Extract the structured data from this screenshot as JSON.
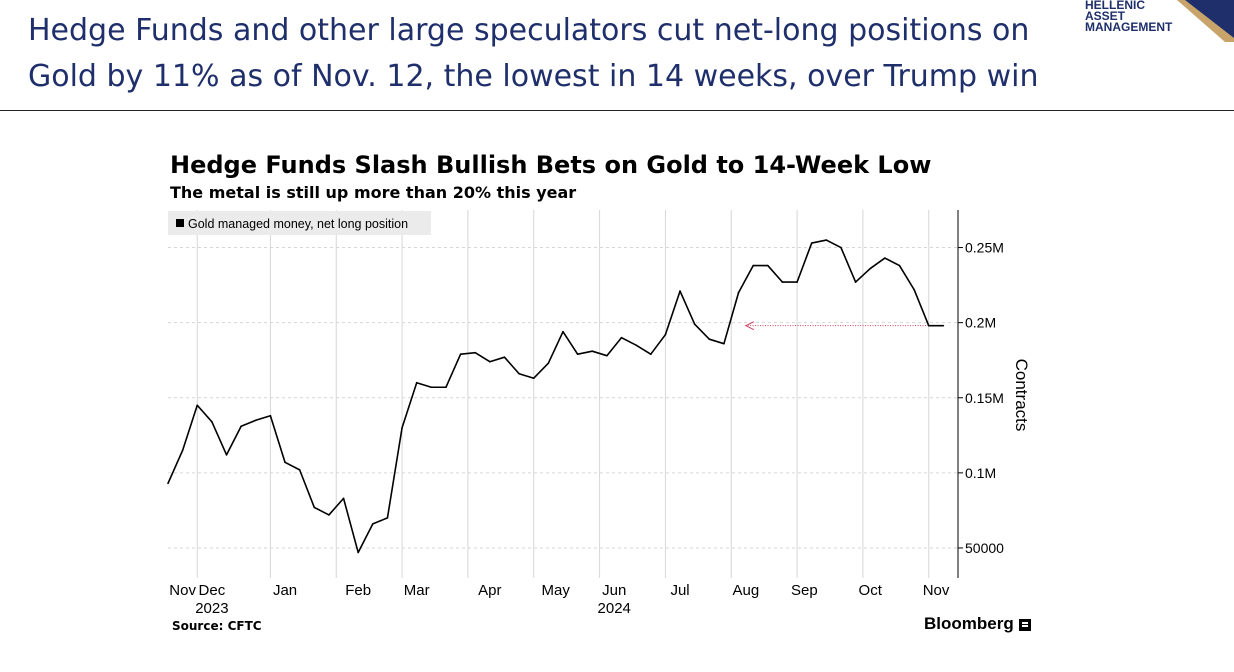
{
  "slide": {
    "headline_line1": "Hedge Funds and other large speculators cut net-long positions on",
    "headline_line2": "Gold by 11% as of Nov. 12, the lowest in 14 weeks, over Trump win",
    "logo_line1": "HELLENIC",
    "logo_line2": "ASSET",
    "logo_line3": "MANAGEMENT",
    "accent_color": "#1f2f6b"
  },
  "chart_data": {
    "type": "line",
    "title": "Hedge Funds Slash Bullish Bets on Gold to 14-Week Low",
    "subtitle": "The metal is still up more than 20% this year",
    "legend": "Gold managed money, net long position",
    "ylabel": "Contracts",
    "ylim": [
      30000,
      275000
    ],
    "yticks": [
      {
        "value": 50000,
        "label": "50000"
      },
      {
        "value": 100000,
        "label": "0.1M"
      },
      {
        "value": 150000,
        "label": "0.15M"
      },
      {
        "value": 200000,
        "label": "0.2M"
      },
      {
        "value": 250000,
        "label": "0.25M"
      }
    ],
    "xlim": [
      0,
      54
    ],
    "xticks": [
      {
        "week": 1,
        "label": "Nov"
      },
      {
        "week": 3,
        "label": "Dec"
      },
      {
        "week": 8,
        "label": "Jan"
      },
      {
        "week": 13,
        "label": "Feb"
      },
      {
        "week": 17,
        "label": "Mar"
      },
      {
        "week": 22,
        "label": "Apr"
      },
      {
        "week": 26.5,
        "label": "May"
      },
      {
        "week": 30.5,
        "label": "Jun"
      },
      {
        "week": 35,
        "label": "Jul"
      },
      {
        "week": 39.5,
        "label": "Aug"
      },
      {
        "week": 43.5,
        "label": "Sep"
      },
      {
        "week": 48,
        "label": "Oct"
      },
      {
        "week": 52.5,
        "label": "Nov"
      }
    ],
    "year_labels": [
      {
        "week": 3,
        "label": "2023"
      },
      {
        "week": 30.5,
        "label": "2024"
      }
    ],
    "vgrid_weeks": [
      2,
      7,
      11.5,
      16,
      20.5,
      25,
      29.5,
      34,
      38.5,
      43,
      47.5,
      52
    ],
    "series": [
      {
        "name": "Gold managed money, net long position",
        "color": "#000000",
        "x": [
          0,
          1,
          2,
          3,
          4,
          5,
          6,
          7,
          8,
          9,
          10,
          11,
          12,
          13,
          14,
          15,
          16,
          17,
          18,
          19,
          20,
          21,
          22,
          23,
          24,
          25,
          26,
          27,
          28,
          29,
          30,
          31,
          32,
          33,
          34,
          35,
          36,
          37,
          38,
          39,
          40,
          41,
          42,
          43,
          44,
          45,
          46,
          47,
          48,
          49,
          50,
          51,
          52,
          53
        ],
        "y": [
          93000,
          115000,
          145000,
          134000,
          112000,
          131000,
          135000,
          138000,
          107000,
          102000,
          77000,
          72000,
          83000,
          47000,
          66000,
          70000,
          130000,
          160000,
          157000,
          157000,
          179000,
          180000,
          174000,
          177000,
          166000,
          163000,
          173000,
          194000,
          179000,
          181000,
          178000,
          190000,
          185000,
          179000,
          192000,
          221000,
          199000,
          189000,
          186000,
          220000,
          238000,
          238000,
          227000,
          227000,
          253000,
          255000,
          250000,
          227000,
          236000,
          243000,
          238000,
          222000,
          198000,
          198000
        ]
      }
    ],
    "annotation": {
      "type": "arrow",
      "from_week": 52.5,
      "to_week": 39.5,
      "value": 198000,
      "color": "#d04060"
    },
    "source": "Source: CFTC",
    "brand": "Bloomberg"
  }
}
